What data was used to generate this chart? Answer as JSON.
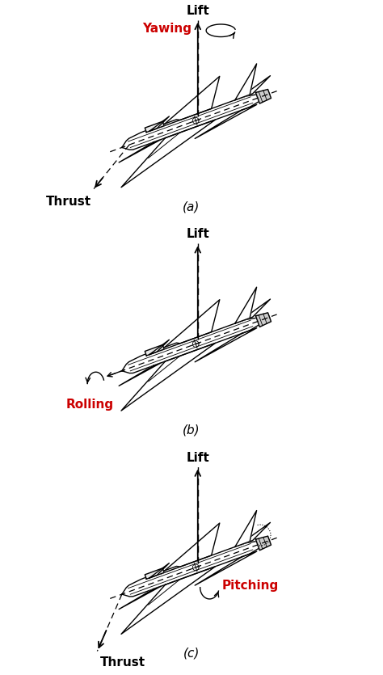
{
  "bg_color": "#ffffff",
  "black": "#000000",
  "red": "#cc0000",
  "panels": [
    {
      "id": "a",
      "label": "(a)",
      "lift_label": "Lift",
      "motion_label": "Yawing",
      "motion_color": "#cc0000",
      "thrust_label": "Thrust",
      "motion_type": "yaw"
    },
    {
      "id": "b",
      "label": "(b)",
      "lift_label": "Lift",
      "motion_label": "Rolling",
      "motion_color": "#cc0000",
      "thrust_label": null,
      "motion_type": "roll"
    },
    {
      "id": "c",
      "label": "(c)",
      "lift_label": "Lift",
      "motion_label": "Pitching",
      "motion_color": "#cc0000",
      "thrust_label": "Thrust",
      "motion_type": "pitch"
    }
  ],
  "figsize": [
    4.74,
    8.35
  ],
  "dpi": 100
}
